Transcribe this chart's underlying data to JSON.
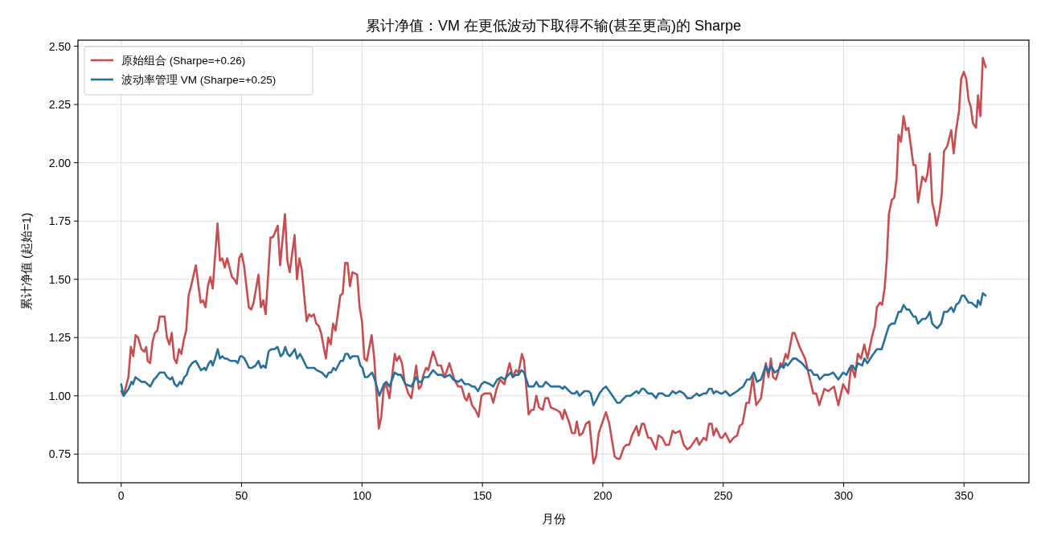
{
  "chart_data": {
    "type": "line",
    "title": "累计净值：VM 在更低波动下取得不输(甚至更高)的 Sharpe",
    "xlabel": "月份",
    "ylabel": "累计净值 (起始=1)",
    "xlim": [
      -17.95,
      376.95
    ],
    "ylim": [
      0.627,
      2.526
    ],
    "xticks": [
      0,
      50,
      100,
      150,
      200,
      250,
      300,
      350
    ],
    "yticks": [
      0.75,
      {
        "value": 1.0,
        "label": "1.00"
      },
      1.25,
      {
        "value": 1.5,
        "label": "1.50"
      },
      1.75,
      {
        "value": 2.0,
        "label": "2.00"
      },
      2.25,
      {
        "value": 2.5,
        "label": "2.50"
      }
    ],
    "grid": true,
    "legend": "top left",
    "series": [
      {
        "name": "原始组合 (Sharpe=+0.26)",
        "color": "#c44e52",
        "x": [
          0,
          1,
          3,
          4,
          5,
          6,
          7,
          8.4,
          9.6,
          10.4,
          11,
          12,
          13,
          14,
          15,
          16,
          18,
          19,
          20,
          21,
          22,
          23,
          24,
          25,
          26,
          27,
          28,
          29,
          31,
          33,
          34,
          35,
          36,
          37,
          38,
          40,
          41,
          42,
          43,
          44,
          46,
          47,
          48,
          49,
          50,
          51,
          53,
          54,
          55,
          57,
          58,
          59,
          60,
          62,
          63,
          65,
          66,
          68,
          69,
          70,
          72,
          73,
          74,
          75,
          77,
          78,
          79,
          80,
          81,
          82,
          83,
          85,
          86,
          87,
          88,
          89,
          91,
          92,
          93,
          94,
          95,
          96,
          98,
          99,
          100,
          101,
          102,
          104,
          105,
          107,
          108,
          109,
          110,
          111.4,
          113.6,
          114.4,
          115.5,
          116.6,
          117.7,
          119.2,
          120.5,
          122.5,
          123.6,
          124.5,
          125.5,
          126.6,
          127.5,
          129.5,
          131.4,
          132.8,
          134.3,
          136.3,
          138.3,
          139.9,
          141.3,
          142.7,
          143.5,
          144.4,
          145.7,
          147.1,
          148.4,
          149.6,
          150.9,
          152.3,
          153.4,
          154.5,
          155.9,
          157.3,
          159.1,
          161.3,
          162.6,
          163.9,
          165.0,
          166.4,
          167.3,
          169.2,
          170.4,
          171.3,
          172.4,
          173.5,
          175.0,
          176.1,
          177.3,
          178.4,
          180.6,
          182.2,
          183.3,
          184.1,
          185.9,
          187.2,
          188.4,
          189.2,
          190.3,
          191.6,
          193.0,
          194.4,
          196.1,
          197.2,
          198.3,
          201.3,
          202.7,
          204.9,
          206.0,
          207.1,
          208.8,
          209.9,
          211.0,
          212.1,
          214.0,
          214.9,
          216.2,
          217.1,
          218.8,
          219.9,
          222.1,
          223.1,
          224.7,
          226.1,
          227.5,
          229.0,
          230.1,
          232.0,
          233.6,
          235.1,
          236.4,
          239.0,
          240.0,
          241.9,
          243.0,
          244.1,
          245.2,
          246.0,
          247.1,
          248.9,
          249.6,
          250.9,
          252.8,
          254.3,
          255.8,
          256.8,
          258.0,
          259.6,
          260.7,
          262.3,
          263.7,
          265.7,
          267.7,
          268.8,
          269.8,
          270.7,
          271.9,
          272.8,
          273.8,
          274.7,
          275.9,
          276.8,
          278.8,
          279.6,
          281.7,
          284.0,
          285.8,
          287.4,
          288.6,
          289.9,
          292.0,
          293.6,
          294.8,
          296.0,
          297.8,
          299.8,
          301.9,
          303.1,
          304.7,
          305.9,
          307.2,
          308.6,
          309.9,
          311.7,
          313.0,
          313.8,
          315.1,
          316.0,
          317.0,
          317.9,
          318.8,
          320.0,
          321.0,
          322.0,
          322.8,
          323.8,
          324.9,
          325.9,
          326.9,
          329.0,
          329.9,
          330.9,
          332.7,
          334.0,
          334.8,
          335.8,
          336.8,
          337.7,
          338.6,
          339.8,
          340.7,
          341.7,
          343.0,
          344.7,
          345.7,
          346.7,
          347.9,
          348.8,
          349.9,
          350.9,
          351.9,
          352.8,
          353.7,
          355.0,
          355.8,
          356.8,
          357.8,
          359.0
        ],
        "values": [
          1.02,
          1.0,
          1.08,
          1.21,
          1.17,
          1.26,
          1.25,
          1.2,
          1.19,
          1.21,
          1.15,
          1.14,
          1.23,
          1.27,
          1.28,
          1.34,
          1.34,
          1.25,
          1.22,
          1.27,
          1.16,
          1.14,
          1.2,
          1.18,
          1.24,
          1.28,
          1.43,
          1.47,
          1.56,
          1.4,
          1.41,
          1.38,
          1.47,
          1.51,
          1.46,
          1.74,
          1.58,
          1.59,
          1.55,
          1.59,
          1.51,
          1.5,
          1.48,
          1.59,
          1.61,
          1.56,
          1.38,
          1.37,
          1.4,
          1.52,
          1.38,
          1.41,
          1.35,
          1.68,
          1.68,
          1.73,
          1.56,
          1.78,
          1.58,
          1.53,
          1.69,
          1.5,
          1.59,
          1.54,
          1.32,
          1.35,
          1.34,
          1.35,
          1.31,
          1.3,
          1.27,
          1.16,
          1.25,
          1.22,
          1.31,
          1.28,
          1.43,
          1.44,
          1.57,
          1.57,
          1.47,
          1.53,
          1.52,
          1.38,
          1.32,
          1.16,
          1.15,
          1.26,
          1.17,
          0.86,
          0.91,
          1.03,
          1.05,
          0.99,
          1.18,
          1.15,
          1.17,
          1.14,
          1.06,
          1.01,
          0.99,
          1.13,
          1.03,
          1.04,
          1.09,
          1.12,
          1.11,
          1.19,
          1.13,
          1.13,
          1.08,
          1.14,
          1.07,
          1.04,
          1.04,
          0.99,
          0.98,
          1.01,
          0.96,
          0.94,
          0.91,
          1.0,
          1.01,
          1.01,
          1.01,
          0.97,
          1.03,
          1.07,
          1.05,
          1.14,
          1.08,
          1.11,
          1.1,
          1.18,
          1.15,
          0.92,
          0.94,
          0.94,
          1.0,
          0.95,
          0.94,
          0.99,
          0.99,
          0.95,
          0.94,
          0.93,
          0.9,
          0.94,
          0.89,
          0.84,
          0.84,
          0.89,
          0.83,
          0.84,
          0.88,
          0.89,
          0.71,
          0.74,
          0.84,
          0.93,
          0.88,
          0.74,
          0.73,
          0.73,
          0.78,
          0.79,
          0.79,
          0.83,
          0.87,
          0.83,
          0.88,
          0.88,
          0.82,
          0.82,
          0.77,
          0.83,
          0.82,
          0.79,
          0.79,
          0.85,
          0.84,
          0.85,
          0.79,
          0.77,
          0.78,
          0.82,
          0.79,
          0.82,
          0.81,
          0.88,
          0.88,
          0.83,
          0.86,
          0.82,
          0.82,
          0.84,
          0.8,
          0.82,
          0.83,
          0.87,
          0.88,
          0.97,
          0.97,
          1.08,
          0.96,
          0.99,
          1.14,
          1.08,
          1.16,
          1.08,
          1.07,
          1.1,
          1.14,
          1.13,
          1.18,
          1.16,
          1.27,
          1.27,
          1.21,
          1.16,
          1.08,
          1.01,
          1.01,
          0.96,
          1.03,
          1.02,
          1.03,
          1.04,
          0.96,
          1.05,
          1.01,
          1.13,
          1.08,
          1.18,
          1.16,
          1.22,
          1.16,
          1.25,
          1.3,
          1.38,
          1.4,
          1.39,
          1.46,
          1.58,
          1.78,
          1.84,
          1.85,
          1.93,
          2.12,
          2.09,
          2.2,
          2.14,
          2.15,
          1.99,
          1.99,
          1.83,
          1.94,
          1.92,
          1.95,
          2.04,
          1.83,
          1.79,
          1.73,
          1.79,
          1.86,
          2.05,
          2.07,
          2.14,
          2.04,
          2.14,
          2.22,
          2.36,
          2.39,
          2.36,
          2.27,
          2.24,
          2.17,
          2.15,
          2.29,
          2.2,
          2.45,
          2.41
        ]
      },
      {
        "name": "波动率管理 VM (Sharpe=+0.25)",
        "color": "#2a6f97",
        "x": [
          0,
          1,
          3.1,
          4.3,
          4.9,
          5.9,
          7.2,
          8.4,
          9.9,
          10.9,
          12.1,
          13.6,
          14.6,
          16,
          17.9,
          19.1,
          20.4,
          21.2,
          22.2,
          23.2,
          24.4,
          25.1,
          26.2,
          27.2,
          28.1,
          29.4,
          30.9,
          32.1,
          33.1,
          34.6,
          35.2,
          36.4,
          37.3,
          38,
          39,
          40.1,
          41,
          42,
          43,
          43.8,
          45.4,
          47.5,
          48.4,
          49.4,
          50.1,
          51.2,
          53.1,
          54.3,
          55.8,
          57,
          58,
          59,
          60,
          61.2,
          62.3,
          63.6,
          64.9,
          66.2,
          67.2,
          68.1,
          69.1,
          70.1,
          72.1,
          73.1,
          74.3,
          75.3,
          77.2,
          79,
          80.2,
          81.2,
          83.3,
          85.2,
          86.2,
          87.2,
          88.1,
          89.1,
          91.1,
          92.1,
          93.1,
          94.1,
          95.1,
          96.0,
          98.3,
          99.3,
          100.2,
          101.2,
          102.2,
          104.2,
          105.3,
          107.2,
          109.1,
          110.1,
          111.4,
          113.6,
          115.0,
          116.2,
          118.0,
          120.5,
          122.5,
          123.6,
          124.6,
          125.8,
          127.5,
          129.5,
          131.4,
          133.0,
          134.3,
          136.5,
          137.9,
          139.9,
          141.3,
          142.7,
          144.3,
          145.7,
          146.8,
          148.2,
          149.6,
          150.9,
          153.1,
          154.5,
          156.2,
          157.9,
          159.1,
          161.7,
          162.6,
          163.9,
          165.0,
          166.2,
          167.3,
          169.2,
          170.4,
          171.3,
          172.4,
          173.5,
          175.0,
          176.3,
          178.4,
          180.6,
          182.2,
          183.3,
          184.1,
          186.1,
          187.2,
          188.4,
          189.2,
          190.3,
          192.3,
          194.1,
          195.0,
          196.1,
          197.2,
          198.6,
          200.1,
          201.3,
          202.7,
          204.7,
          206.0,
          207.1,
          208.8,
          209.9,
          211.5,
          212.7,
          214.0,
          214.9,
          216.2,
          217.1,
          218.8,
          220.4,
          222.1,
          223.1,
          224.7,
          226.1,
          227.5,
          229.0,
          230.3,
          232.0,
          233.6,
          235.1,
          236.7,
          239.0,
          240.0,
          241.9,
          243.0,
          244.1,
          245.2,
          246.0,
          247.1,
          248.9,
          249.6,
          250.9,
          252.8,
          254.3,
          255.8,
          257.0,
          258.3,
          259.9,
          261.1,
          262.7,
          264.0,
          265.7,
          267.7,
          268.8,
          269.8,
          271.4,
          272.8,
          274.1,
          275.1,
          275.9,
          276.8,
          279.0,
          280.2,
          282.7,
          285.2,
          286.4,
          287.7,
          289.1,
          290.1,
          292.0,
          293.8,
          295.7,
          297.8,
          299.8,
          301.2,
          302.5,
          303.7,
          304.9,
          305.9,
          307.7,
          308.6,
          309.9,
          311.7,
          313.8,
          315.8,
          317.3,
          318.8,
          320.0,
          321.2,
          322.8,
          323.8,
          324.9,
          326.2,
          327.2,
          329.0,
          329.9,
          330.9,
          332.7,
          334.0,
          334.8,
          335.8,
          336.8,
          337.7,
          338.9,
          340.5,
          341.7,
          343.0,
          344.7,
          345.7,
          346.7,
          347.9,
          349.1,
          350.1,
          351.9,
          353.1,
          354.1,
          355.3,
          355.8,
          356.8,
          357.8,
          359.0
        ],
        "values": [
          1.05,
          1.0,
          1.03,
          1.06,
          1.05,
          1.08,
          1.07,
          1.06,
          1.06,
          1.05,
          1.04,
          1.07,
          1.08,
          1.1,
          1.1,
          1.08,
          1.07,
          1.08,
          1.05,
          1.04,
          1.06,
          1.05,
          1.08,
          1.09,
          1.12,
          1.14,
          1.15,
          1.13,
          1.11,
          1.12,
          1.11,
          1.14,
          1.15,
          1.13,
          1.16,
          1.2,
          1.16,
          1.17,
          1.16,
          1.16,
          1.15,
          1.15,
          1.14,
          1.17,
          1.17,
          1.16,
          1.12,
          1.12,
          1.13,
          1.15,
          1.12,
          1.13,
          1.12,
          1.19,
          1.2,
          1.2,
          1.21,
          1.17,
          1.18,
          1.21,
          1.18,
          1.17,
          1.2,
          1.16,
          1.18,
          1.16,
          1.12,
          1.12,
          1.12,
          1.11,
          1.1,
          1.08,
          1.1,
          1.1,
          1.12,
          1.11,
          1.15,
          1.15,
          1.18,
          1.18,
          1.16,
          1.17,
          1.17,
          1.13,
          1.12,
          1.08,
          1.08,
          1.1,
          1.07,
          1.0,
          1.05,
          1.06,
          1.04,
          1.1,
          1.09,
          1.09,
          1.05,
          1.04,
          1.08,
          1.06,
          1.06,
          1.08,
          1.08,
          1.11,
          1.09,
          1.09,
          1.08,
          1.09,
          1.07,
          1.06,
          1.07,
          1.05,
          1.05,
          1.04,
          1.04,
          1.02,
          1.05,
          1.06,
          1.05,
          1.04,
          1.07,
          1.08,
          1.07,
          1.1,
          1.08,
          1.09,
          1.09,
          1.11,
          1.1,
          1.04,
          1.04,
          1.04,
          1.06,
          1.04,
          1.04,
          1.06,
          1.04,
          1.04,
          1.04,
          1.03,
          1.04,
          1.02,
          1.01,
          1.01,
          1.02,
          1.0,
          1.02,
          1.02,
          1.01,
          0.96,
          0.98,
          1.01,
          1.03,
          1.04,
          1.02,
          0.99,
          0.97,
          0.97,
          0.99,
          1.0,
          1.0,
          1.01,
          1.02,
          1.01,
          1.03,
          1.03,
          1.01,
          1.01,
          0.99,
          1.01,
          1.01,
          1.0,
          1.0,
          1.02,
          1.01,
          1.02,
          1.01,
          0.99,
          0.99,
          1.01,
          1.0,
          1.01,
          1.01,
          1.03,
          1.03,
          1.01,
          1.02,
          1.01,
          1.01,
          1.02,
          1.0,
          1.01,
          1.02,
          1.03,
          1.04,
          1.07,
          1.07,
          1.1,
          1.06,
          1.07,
          1.13,
          1.1,
          1.13,
          1.1,
          1.11,
          1.13,
          1.12,
          1.14,
          1.13,
          1.16,
          1.16,
          1.14,
          1.11,
          1.11,
          1.09,
          1.09,
          1.07,
          1.09,
          1.09,
          1.1,
          1.07,
          1.1,
          1.09,
          1.12,
          1.13,
          1.11,
          1.14,
          1.13,
          1.16,
          1.14,
          1.17,
          1.2,
          1.2,
          1.25,
          1.3,
          1.31,
          1.31,
          1.36,
          1.36,
          1.39,
          1.37,
          1.37,
          1.34,
          1.34,
          1.31,
          1.33,
          1.33,
          1.34,
          1.36,
          1.31,
          1.3,
          1.29,
          1.31,
          1.36,
          1.36,
          1.38,
          1.36,
          1.39,
          1.4,
          1.43,
          1.43,
          1.4,
          1.4,
          1.39,
          1.38,
          1.41,
          1.39,
          1.44,
          1.43
        ]
      }
    ]
  }
}
